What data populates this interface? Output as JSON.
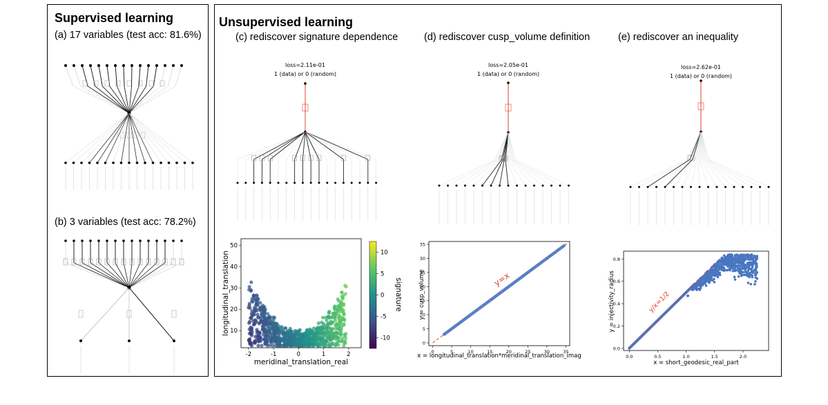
{
  "supervised": {
    "title": "Supervised learning",
    "panel_a": {
      "label": "(a) 17 variables (test acc: 81.6%)"
    },
    "panel_b": {
      "label": "(b) 3 variables (test acc: 78.2%)"
    }
  },
  "unsupervised": {
    "title": "Unsupervised learning",
    "panel_c": {
      "label": "(c) rediscover signature dependence",
      "loss": "loss=2.11e-01",
      "output": "1 (data) or 0 (random)"
    },
    "panel_d": {
      "label": "(d) rediscover cusp_volume definition",
      "loss": "loss=2.05e-01",
      "output": "1 (data) or 0 (random)"
    },
    "panel_e": {
      "label": "(e) rediscover an inequality",
      "loss": "loss=2.62e-01",
      "output": "1 (data) or 0 (random)"
    }
  },
  "colors": {
    "red_edge": "#e0402a",
    "blue_points": "#4a76c0",
    "line": "#222222"
  },
  "chart_data": [
    {
      "type": "scatter",
      "xlabel": "meridinal_translation_real",
      "ylabel": "longitudinal_translation",
      "colorbar_label": "signature",
      "xlim": [
        -2.3,
        2.5
      ],
      "ylim": [
        2,
        53
      ],
      "xticks": [
        "-2",
        "-1",
        "0",
        "1",
        "2"
      ],
      "xtick_values": [
        -2,
        -1,
        0,
        1,
        2
      ],
      "yticks": [
        "10",
        "20",
        "30",
        "40",
        "50"
      ],
      "ytick_values": [
        10,
        20,
        30,
        40,
        50
      ],
      "colorbar_ticks": [
        "10",
        "5",
        "0",
        "-5",
        "-10"
      ],
      "colorbar_values": [
        10,
        5,
        0,
        -5,
        -10
      ],
      "colormap": "viridis",
      "grid": false
    },
    {
      "type": "scatter",
      "xlabel": "x = longitudinal_translation*meridinal_translation_imag",
      "ylabel": "y = cusp_volume",
      "xlim": [
        -1,
        36
      ],
      "ylim": [
        -1,
        36
      ],
      "xticks": [
        "0",
        "5",
        "10",
        "15",
        "20",
        "25",
        "30",
        "35"
      ],
      "xtick_values": [
        0,
        5,
        10,
        15,
        20,
        25,
        30,
        35
      ],
      "yticks": [
        "0",
        "5",
        "10",
        "15",
        "20",
        "25",
        "30",
        "35"
      ],
      "ytick_values": [
        0,
        5,
        10,
        15,
        20,
        25,
        30,
        35
      ],
      "annotation": "y=x",
      "points_range": [
        3,
        34.5
      ],
      "grid": false
    },
    {
      "type": "scatter",
      "xlabel": "x = short_geodesic_real_part",
      "ylabel": "y = injectivity_radius",
      "xlim": [
        -0.1,
        2.45
      ],
      "ylim": [
        -0.02,
        0.87
      ],
      "xticks": [
        "0.0",
        "0.5",
        "1.0",
        "1.5",
        "2.0"
      ],
      "xtick_values": [
        0,
        0.5,
        1.0,
        1.5,
        2.0
      ],
      "yticks": [
        "0.0",
        "0.2",
        "0.4",
        "0.6",
        "0.8"
      ],
      "ytick_values": [
        0,
        0.2,
        0.4,
        0.6,
        0.8
      ],
      "annotation": "y/x=1/2",
      "grid": false
    }
  ]
}
